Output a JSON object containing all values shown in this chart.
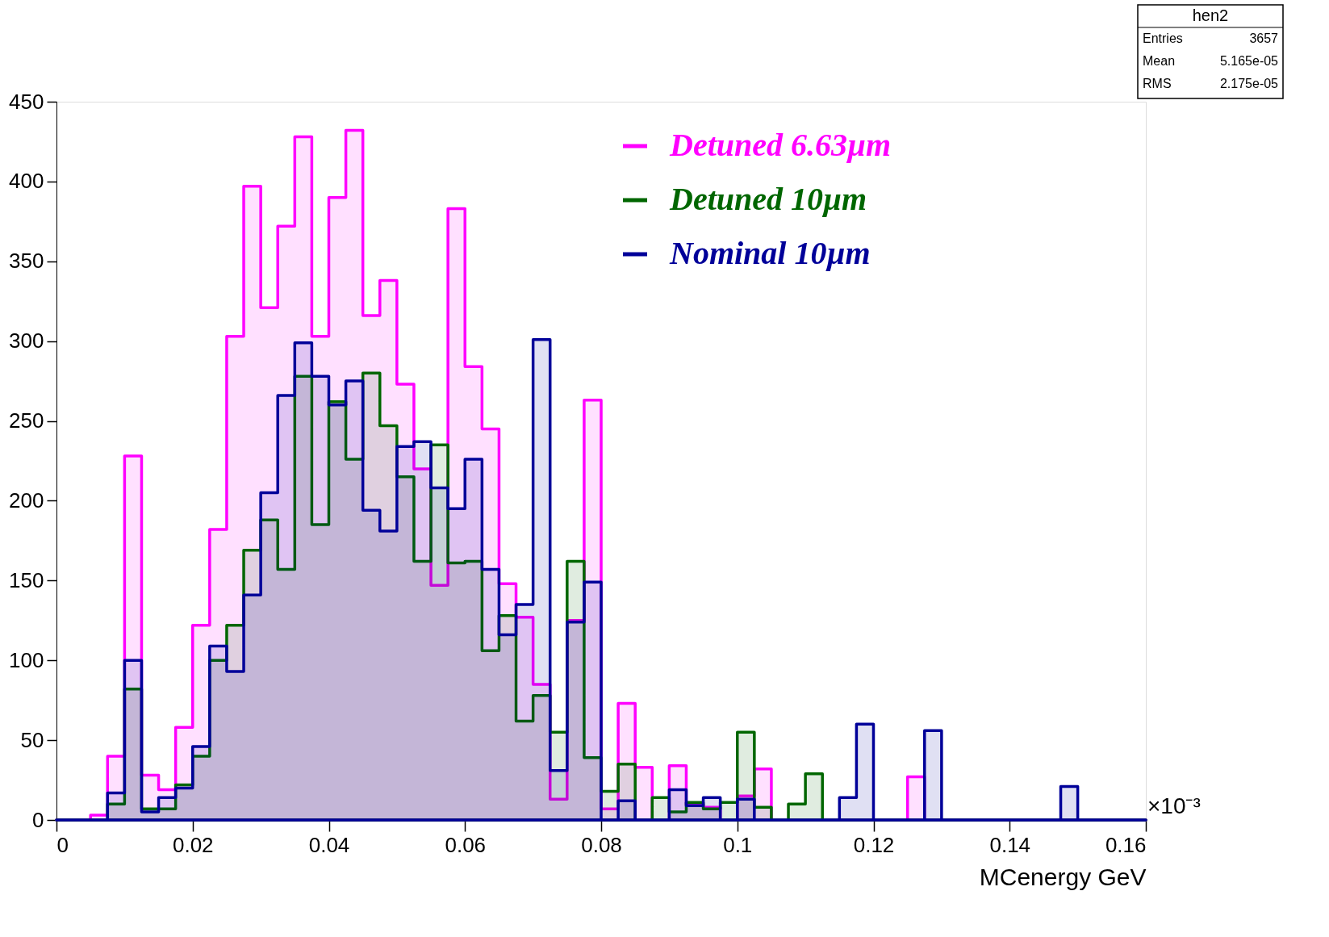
{
  "chart_data": {
    "type": "histogram",
    "bins": [
      0,
      0.0025,
      0.005,
      0.0075,
      0.01,
      0.0125,
      0.015,
      0.0175,
      0.02,
      0.0225,
      0.025,
      0.0275,
      0.03,
      0.0325,
      0.035,
      0.0375,
      0.04,
      0.0425,
      0.045,
      0.0475,
      0.05,
      0.0525,
      0.055,
      0.0575,
      0.06,
      0.0625,
      0.065,
      0.0675,
      0.07,
      0.0725,
      0.075,
      0.0775,
      0.08,
      0.0825,
      0.085,
      0.0875,
      0.09,
      0.0925,
      0.095,
      0.0975,
      0.1,
      0.1025,
      0.105,
      0.1075,
      0.11,
      0.1125,
      0.115,
      0.1175,
      0.12,
      0.1225,
      0.125,
      0.1275,
      0.13,
      0.1325,
      0.135,
      0.1375,
      0.14,
      0.1425,
      0.145,
      0.1475,
      0.15,
      0.1525,
      0.155,
      0.1575,
      0.16
    ],
    "series": [
      {
        "name": "Detuned 6.63µm",
        "color": "#ff00ff",
        "values": [
          0,
          0,
          3,
          40,
          228,
          28,
          19,
          58,
          122,
          182,
          303,
          397,
          321,
          372,
          428,
          303,
          390,
          432,
          316,
          338,
          273,
          220,
          147,
          383,
          284,
          245,
          148,
          127,
          85,
          13,
          125,
          263,
          7,
          73,
          33,
          0,
          34,
          10,
          8,
          0,
          15,
          32,
          0,
          0,
          0,
          0,
          0,
          0,
          0,
          0,
          27,
          0,
          0,
          0,
          0,
          0,
          0,
          0,
          0,
          0,
          0,
          0,
          0,
          0
        ]
      },
      {
        "name": "Detuned 10µm",
        "color": "#006600",
        "values": [
          0,
          0,
          0,
          10,
          82,
          7,
          7,
          22,
          40,
          100,
          122,
          169,
          188,
          157,
          278,
          185,
          262,
          226,
          280,
          247,
          215,
          162,
          235,
          161,
          162,
          106,
          128,
          62,
          78,
          55,
          162,
          39,
          18,
          35,
          0,
          14,
          5,
          11,
          7,
          11,
          55,
          8,
          0,
          10,
          29,
          0,
          0,
          0,
          0,
          0,
          0,
          0,
          0,
          0,
          0,
          0,
          0,
          0,
          0,
          0,
          0,
          0,
          0,
          0
        ]
      },
      {
        "name": "Nominal 10µm",
        "color": "#000099",
        "values": [
          0,
          0,
          0,
          17,
          100,
          5,
          14,
          20,
          46,
          109,
          93,
          141,
          205,
          266,
          299,
          278,
          260,
          275,
          194,
          181,
          234,
          237,
          208,
          195,
          226,
          157,
          116,
          135,
          301,
          31,
          124,
          149,
          0,
          12,
          0,
          0,
          19,
          9,
          14,
          0,
          13,
          0,
          0,
          0,
          0,
          0,
          14,
          60,
          0,
          0,
          0,
          56,
          0,
          0,
          0,
          0,
          0,
          0,
          0,
          21,
          0,
          0,
          0,
          0
        ]
      }
    ],
    "xlabel": "MCenergy GeV",
    "xlim": [
      0,
      0.16
    ],
    "xticks": [
      0,
      0.02,
      0.04,
      0.06,
      0.08,
      0.1,
      0.12,
      0.14,
      0.16
    ],
    "ylim": [
      0,
      450
    ],
    "yticks": [
      0,
      50,
      100,
      150,
      200,
      250,
      300,
      350,
      400,
      450
    ],
    "legend": "top",
    "grid": false,
    "annotations": [
      "×10⁻³",
      "hen2",
      "Entries",
      "3657",
      "Mean",
      "5.165e-05",
      "RMS",
      "2.175e-05"
    ]
  }
}
